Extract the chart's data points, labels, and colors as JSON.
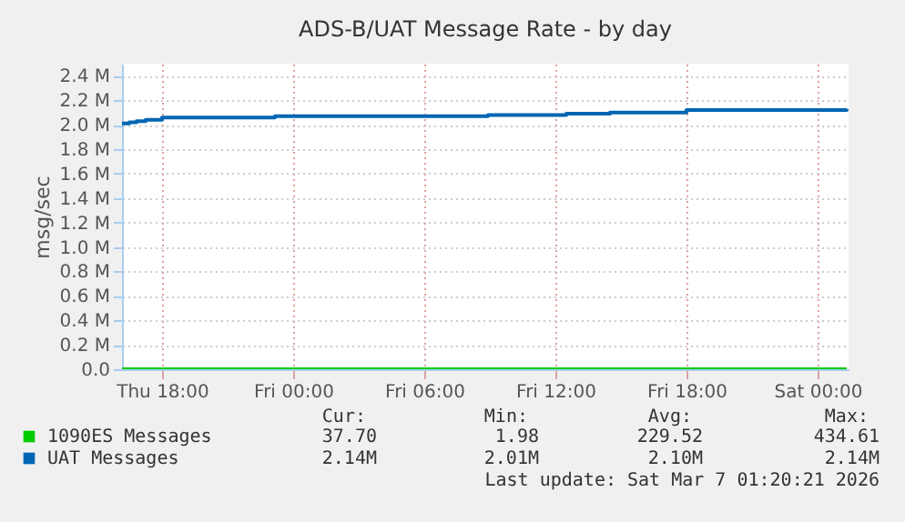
{
  "chart_data": {
    "type": "step",
    "title": "ADS-B/UAT Message Rate - by day",
    "ylabel": "msg/sec",
    "xlim": [
      "2026-03-05T16:10",
      "2026-03-07T01:25"
    ],
    "xticks": [
      {
        "value": "2026-03-05T18:00",
        "label": "Thu 18:00"
      },
      {
        "value": "2026-03-06T00:00",
        "label": "Fri 00:00"
      },
      {
        "value": "2026-03-06T06:00",
        "label": "Fri 06:00"
      },
      {
        "value": "2026-03-06T12:00",
        "label": "Fri 12:00"
      },
      {
        "value": "2026-03-06T18:00",
        "label": "Fri 18:00"
      },
      {
        "value": "2026-03-07T00:00",
        "label": "Sat 00:00"
      }
    ],
    "ylim": [
      0,
      2500000
    ],
    "yticks": [
      {
        "value": 0,
        "label": "0.0"
      },
      {
        "value": 200000,
        "label": "0.2 M"
      },
      {
        "value": 400000,
        "label": "0.4 M"
      },
      {
        "value": 600000,
        "label": "0.6 M"
      },
      {
        "value": 800000,
        "label": "0.8 M"
      },
      {
        "value": 1000000,
        "label": "1.0 M"
      },
      {
        "value": 1200000,
        "label": "1.2 M"
      },
      {
        "value": 1400000,
        "label": "1.4 M"
      },
      {
        "value": 1600000,
        "label": "1.6 M"
      },
      {
        "value": 1800000,
        "label": "1.8 M"
      },
      {
        "value": 2000000,
        "label": "2.0 M"
      },
      {
        "value": 2200000,
        "label": "2.2 M"
      },
      {
        "value": 2400000,
        "label": "2.4 M"
      }
    ],
    "grid": true,
    "legend": "bottom",
    "x": [
      "2026-03-05T16:10",
      "2026-03-05T16:30",
      "2026-03-05T16:50",
      "2026-03-05T17:15",
      "2026-03-05T18:00",
      "2026-03-05T23:10",
      "2026-03-06T08:55",
      "2026-03-06T12:30",
      "2026-03-06T14:30",
      "2026-03-06T18:00",
      "2026-03-07T01:20"
    ],
    "series": [
      {
        "name": "1090ES Messages",
        "color": "#00cc00",
        "values": [
          0,
          0,
          0,
          0,
          0,
          0,
          0,
          0,
          0,
          0,
          0
        ]
      },
      {
        "name": "UAT Messages",
        "color": "#0066b3",
        "values": [
          2010000,
          2020000,
          2030000,
          2040000,
          2060000,
          2070000,
          2080000,
          2090000,
          2100000,
          2120000,
          2130000
        ]
      }
    ],
    "annotations": [
      "Cur:",
      "Min:",
      "Avg:",
      "Max:",
      "37.70",
      "1.98",
      "229.52",
      "434.61",
      "2.14M",
      "2.01M",
      "2.10M",
      "2.14M",
      "Last update: Sat Mar  7 01:20:21 2026"
    ]
  }
}
